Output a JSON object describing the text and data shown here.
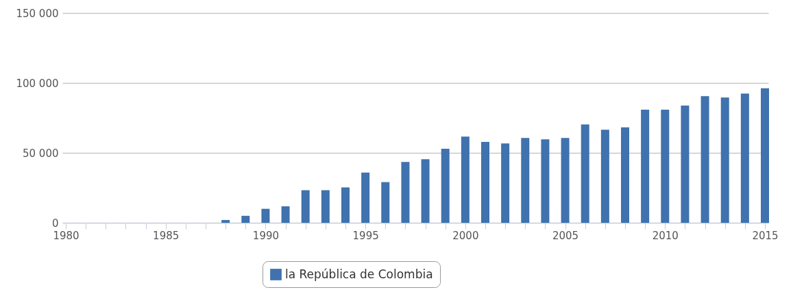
{
  "chart_data": {
    "type": "bar",
    "x": [
      1988,
      1989,
      1990,
      1991,
      1992,
      1993,
      1994,
      1995,
      1996,
      1997,
      1998,
      1999,
      2000,
      2001,
      2002,
      2003,
      2004,
      2005,
      2006,
      2007,
      2008,
      2009,
      2010,
      2011,
      2012,
      2013,
      2014,
      2015
    ],
    "series": [
      {
        "name": "la República de Colombia",
        "color": "#3f72ae",
        "values": [
          2000,
          5000,
          10000,
          11800,
          23300,
          23300,
          25300,
          35900,
          29100,
          43500,
          45500,
          53000,
          61600,
          57800,
          56800,
          60700,
          59700,
          60700,
          70300,
          66500,
          68300,
          80900,
          80900,
          83800,
          90600,
          89600,
          92400,
          96200
        ]
      }
    ],
    "xlim": [
      1980,
      2015
    ],
    "xticks": [
      1980,
      {
        "value": 1981,
        "label": null
      },
      {
        "value": 1982,
        "label": null
      },
      {
        "value": 1983,
        "label": null
      },
      {
        "value": 1984,
        "label": null
      },
      1985,
      {
        "value": 1986,
        "label": null
      },
      {
        "value": 1987,
        "label": null
      },
      {
        "value": 1988,
        "label": null
      },
      {
        "value": 1989,
        "label": null
      },
      1990,
      {
        "value": 1991,
        "label": null
      },
      {
        "value": 1992,
        "label": null
      },
      {
        "value": 1993,
        "label": null
      },
      {
        "value": 1994,
        "label": null
      },
      1995,
      {
        "value": 1996,
        "label": null
      },
      {
        "value": 1997,
        "label": null
      },
      {
        "value": 1998,
        "label": null
      },
      {
        "value": 1999,
        "label": null
      },
      2000,
      {
        "value": 2001,
        "label": null
      },
      {
        "value": 2002,
        "label": null
      },
      {
        "value": 2003,
        "label": null
      },
      {
        "value": 2004,
        "label": null
      },
      2005,
      {
        "value": 2006,
        "label": null
      },
      {
        "value": 2007,
        "label": null
      },
      {
        "value": 2008,
        "label": null
      },
      {
        "value": 2009,
        "label": null
      },
      2010,
      {
        "value": 2011,
        "label": null
      },
      {
        "value": 2012,
        "label": null
      },
      {
        "value": 2013,
        "label": null
      },
      {
        "value": 2014,
        "label": null
      },
      2015
    ],
    "ylim": [
      0,
      150000
    ],
    "yticks": [
      {
        "value": 0,
        "label": "0"
      },
      {
        "value": 50000,
        "label": "50 000"
      },
      {
        "value": 100000,
        "label": "100 000"
      },
      {
        "value": 150000,
        "label": "150 000"
      }
    ],
    "grid": "y",
    "legend": "bottom"
  }
}
